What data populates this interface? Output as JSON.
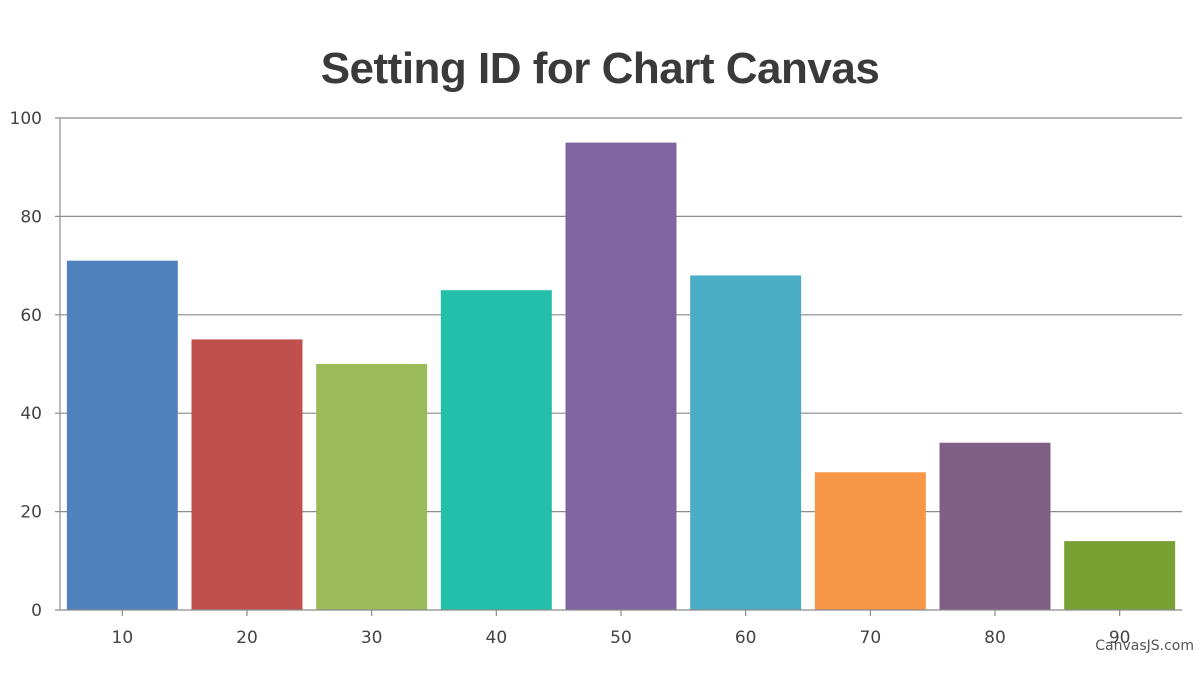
{
  "chart_data": {
    "type": "bar",
    "title": "Setting ID for Chart Canvas",
    "categories": [
      "10",
      "20",
      "30",
      "40",
      "50",
      "60",
      "70",
      "80",
      "90"
    ],
    "values": [
      71,
      55,
      50,
      65,
      95,
      68,
      28,
      34,
      14
    ],
    "colors": [
      "#4f81bc",
      "#c0504e",
      "#9bbb58",
      "#23bfaa",
      "#8064a1",
      "#4aacc5",
      "#f79647",
      "#7f6084",
      "#77a033"
    ],
    "ylim": [
      0,
      100
    ],
    "yticks": [
      0,
      20,
      40,
      60,
      80,
      100
    ],
    "grid": true,
    "legend": "none"
  },
  "credit": "CanvasJS.com"
}
